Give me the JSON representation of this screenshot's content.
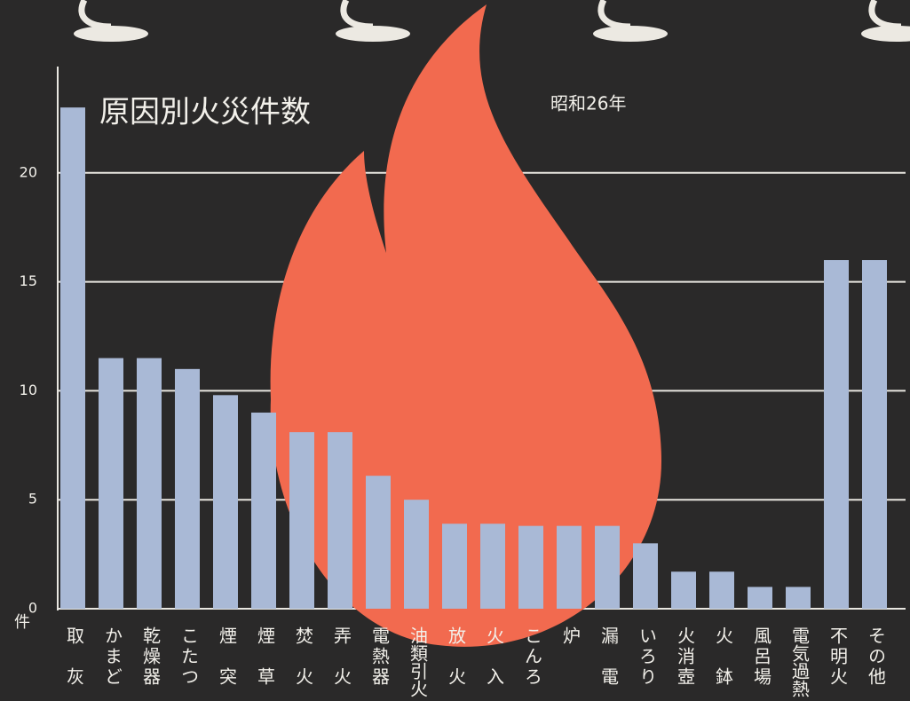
{
  "chart_data": {
    "type": "bar",
    "title": "原因別火災件数",
    "subtitle": "昭和26年",
    "y_label": "件",
    "categories": [
      "取灰",
      "かまど",
      "乾燥器",
      "こたつ",
      "煙突",
      "煙草",
      "焚火",
      "弄火",
      "電熱器",
      "油類引火",
      "放火",
      "火入",
      "こんろ",
      "炉",
      "漏電",
      "いろり",
      "火消壺",
      "火鉢",
      "風呂場",
      "電気過熱",
      "不明火",
      "その他"
    ],
    "values": [
      23,
      11.5,
      11.5,
      11,
      9.8,
      9,
      8.1,
      8.1,
      6.1,
      5,
      3.9,
      3.9,
      3.8,
      3.8,
      3.8,
      3,
      1.7,
      1.7,
      1,
      1,
      16,
      16
    ],
    "color": "#a9b9d6",
    "ylim": [
      0,
      25
    ],
    "yticks": [
      0,
      5,
      10,
      15,
      20
    ],
    "grid": true
  }
}
